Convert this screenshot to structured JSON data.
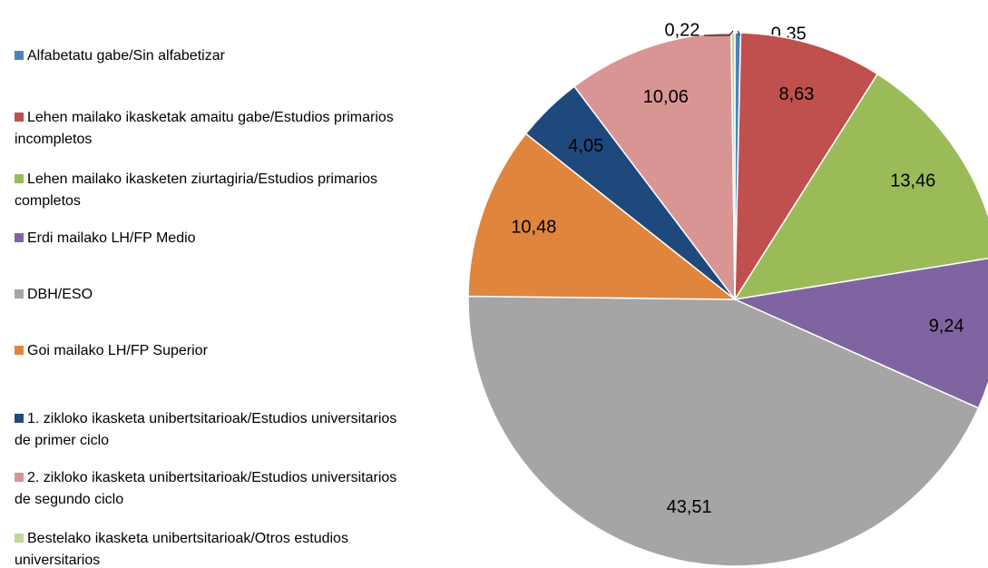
{
  "chart_data": {
    "type": "pie",
    "categories": [
      "Alfabetatu gabe/Sin alfabetizar",
      "Lehen mailako ikasketak amaitu gabe/Estudios primarios incompletos",
      "Lehen mailako ikasketen ziurtagiria/Estudios primarios completos",
      "Erdi mailako LH/FP Medio",
      "DBH/ESO",
      "Goi mailako LH/FP Superior",
      "1. zikloko ikasketa unibertsitarioak/Estudios universitarios de primer ciclo",
      "2. zikloko ikasketa unibertsitarioak/Estudios universitarios de segundo ciclo",
      "Bestelako ikasketa unibertsitarioak/Otros estudios universitarios"
    ],
    "values": [
      0.35,
      8.63,
      13.46,
      9.24,
      43.51,
      10.48,
      4.05,
      10.06,
      0.22
    ],
    "value_labels": [
      "0,35",
      "8,63",
      "13,46",
      "9,24",
      "43,51",
      "10,48",
      "4,05",
      "10,06",
      "0,22"
    ],
    "colors": [
      "#4f81bd",
      "#c0504d",
      "#9bbb59",
      "#8064a2",
      "#a5a5a5",
      "#e0853d",
      "#1f497d",
      "#d99594",
      "#c3d69b"
    ],
    "legend": "left"
  }
}
